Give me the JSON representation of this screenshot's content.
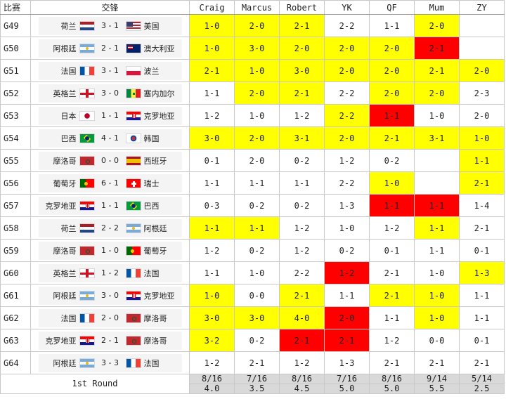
{
  "header": {
    "match_col": "比赛",
    "teams_col": "交锋",
    "players": [
      "Craig",
      "Marcus",
      "Robert",
      "YK",
      "QF",
      "Mum",
      "ZY"
    ]
  },
  "colors": {
    "highlight_yellow": "#ffff00",
    "highlight_red": "#ff0000",
    "summary_grey": "#d9d9d9"
  },
  "rows": [
    {
      "id": "G49",
      "home": "荷兰",
      "home_flag": "netherlands-flag",
      "score": "3 - 1",
      "away": "美国",
      "away_flag": "usa-flag",
      "picks": [
        "1-0",
        "2-0",
        "2-1",
        "2-2",
        "1-1",
        "2-0",
        ""
      ],
      "marks": [
        "y",
        "y",
        "y",
        "",
        "",
        "y",
        ""
      ]
    },
    {
      "id": "G50",
      "home": "阿根廷",
      "home_flag": "argentina-flag",
      "score": "2 - 1",
      "away": "澳大利亚",
      "away_flag": "australia-flag",
      "picks": [
        "1-0",
        "3-0",
        "2-0",
        "2-0",
        "2-0",
        "2-1",
        ""
      ],
      "marks": [
        "y",
        "y",
        "y",
        "y",
        "y",
        "r",
        ""
      ]
    },
    {
      "id": "G51",
      "home": "法国",
      "home_flag": "france-flag",
      "score": "3 - 1",
      "away": "波兰",
      "away_flag": "poland-flag",
      "picks": [
        "2-1",
        "1-0",
        "3-0",
        "2-0",
        "2-0",
        "2-1",
        "2-0"
      ],
      "marks": [
        "y",
        "y",
        "y",
        "y",
        "y",
        "y",
        "y"
      ]
    },
    {
      "id": "G52",
      "home": "英格兰",
      "home_flag": "england-flag",
      "score": "3 - 0",
      "away": "塞内加尔",
      "away_flag": "senegal-flag",
      "picks": [
        "1-1",
        "2-0",
        "2-1",
        "2-2",
        "2-0",
        "2-0",
        "2-3"
      ],
      "marks": [
        "",
        "y",
        "y",
        "",
        "y",
        "y",
        ""
      ]
    },
    {
      "id": "G53",
      "home": "日本",
      "home_flag": "japan-flag",
      "score": "1 - 1",
      "away": "克罗地亚",
      "away_flag": "croatia-flag",
      "picks": [
        "1-2",
        "1-0",
        "1-2",
        "2-2",
        "1-1",
        "1-0",
        "2-0"
      ],
      "marks": [
        "",
        "",
        "",
        "y",
        "r",
        "",
        ""
      ]
    },
    {
      "id": "G54",
      "home": "巴西",
      "home_flag": "brazil-flag",
      "score": "4 - 1",
      "away": "韩国",
      "away_flag": "korea-flag",
      "picks": [
        "3-0",
        "2-0",
        "3-1",
        "2-0",
        "2-1",
        "3-1",
        "1-0"
      ],
      "marks": [
        "y",
        "y",
        "y",
        "y",
        "y",
        "y",
        "y"
      ]
    },
    {
      "id": "G55",
      "home": "摩洛哥",
      "home_flag": "morocco-flag",
      "score": "0 - 0",
      "away": "西班牙",
      "away_flag": "spain-flag",
      "picks": [
        "0-1",
        "2-0",
        "0-2",
        "1-2",
        "0-2",
        "",
        "1-1"
      ],
      "marks": [
        "",
        "",
        "",
        "",
        "",
        "",
        "y"
      ]
    },
    {
      "id": "G56",
      "home": "葡萄牙",
      "home_flag": "portugal-flag",
      "score": "6 - 1",
      "away": "瑞士",
      "away_flag": "switzerland-flag",
      "picks": [
        "1-1",
        "1-1",
        "1-1",
        "2-2",
        "1-0",
        "",
        "2-1"
      ],
      "marks": [
        "",
        "",
        "",
        "",
        "y",
        "",
        "y"
      ]
    },
    {
      "id": "G57",
      "home": "克罗地亚",
      "home_flag": "croatia-flag",
      "score": "1 - 1",
      "away": "巴西",
      "away_flag": "brazil-flag",
      "picks": [
        "0-3",
        "0-2",
        "0-2",
        "1-3",
        "1-1",
        "1-1",
        "1-4"
      ],
      "marks": [
        "",
        "",
        "",
        "",
        "r",
        "r",
        ""
      ]
    },
    {
      "id": "G58",
      "home": "荷兰",
      "home_flag": "netherlands-flag",
      "score": "2 - 2",
      "away": "阿根廷",
      "away_flag": "argentina-flag",
      "picks": [
        "1-1",
        "1-1",
        "1-2",
        "1-0",
        "1-2",
        "1-1",
        "2-1"
      ],
      "marks": [
        "y",
        "y",
        "",
        "",
        "",
        "y",
        ""
      ]
    },
    {
      "id": "G59",
      "home": "摩洛哥",
      "home_flag": "morocco-flag",
      "score": "1 - 0",
      "away": "葡萄牙",
      "away_flag": "portugal-flag",
      "picks": [
        "1-2",
        "0-2",
        "1-2",
        "0-2",
        "0-1",
        "1-1",
        "0-1"
      ],
      "marks": [
        "",
        "",
        "",
        "",
        "",
        "",
        ""
      ]
    },
    {
      "id": "G60",
      "home": "英格兰",
      "home_flag": "england-flag",
      "score": "1 - 2",
      "away": "法国",
      "away_flag": "france-flag",
      "picks": [
        "1-1",
        "1-0",
        "2-2",
        "1-2",
        "2-1",
        "1-0",
        "1-3"
      ],
      "marks": [
        "",
        "",
        "",
        "r",
        "",
        "",
        "y"
      ]
    },
    {
      "id": "G61",
      "home": "阿根廷",
      "home_flag": "argentina-flag",
      "score": "3 - 0",
      "away": "克罗地亚",
      "away_flag": "croatia-flag",
      "picks": [
        "1-0",
        "0-0",
        "2-1",
        "1-1",
        "2-1",
        "1-0",
        "1-1"
      ],
      "marks": [
        "y",
        "",
        "y",
        "",
        "y",
        "y",
        ""
      ]
    },
    {
      "id": "G62",
      "home": "法国",
      "home_flag": "france-flag",
      "score": "2 - 0",
      "away": "摩洛哥",
      "away_flag": "morocco-flag",
      "picks": [
        "3-0",
        "3-0",
        "4-0",
        "2-0",
        "1-1",
        "1-0",
        "1-1"
      ],
      "marks": [
        "y",
        "y",
        "y",
        "r",
        "",
        "y",
        ""
      ]
    },
    {
      "id": "G63",
      "home": "克罗地亚",
      "home_flag": "croatia-flag",
      "score": "2 - 1",
      "away": "摩洛哥",
      "away_flag": "morocco-flag",
      "picks": [
        "3-2",
        "0-2",
        "2-1",
        "2-1",
        "1-2",
        "0-0",
        "0-1"
      ],
      "marks": [
        "y",
        "",
        "r",
        "r",
        "",
        "",
        ""
      ]
    },
    {
      "id": "G64",
      "home": "阿根廷",
      "home_flag": "argentina-flag",
      "score": "3 - 3",
      "away": "法国",
      "away_flag": "france-flag",
      "picks": [
        "1-2",
        "2-1",
        "1-2",
        "1-3",
        "2-1",
        "2-1",
        "2-1"
      ],
      "marks": [
        "",
        "",
        "",
        "",
        "",
        "",
        ""
      ]
    }
  ],
  "summary": {
    "label": "1st Round",
    "ratio": [
      "8/16",
      "7/16",
      "8/16",
      "7/16",
      "8/16",
      "9/14",
      "5/14"
    ],
    "points": [
      "4.0",
      "3.5",
      "4.5",
      "5.0",
      "5.0",
      "5.5",
      "2.5"
    ]
  }
}
